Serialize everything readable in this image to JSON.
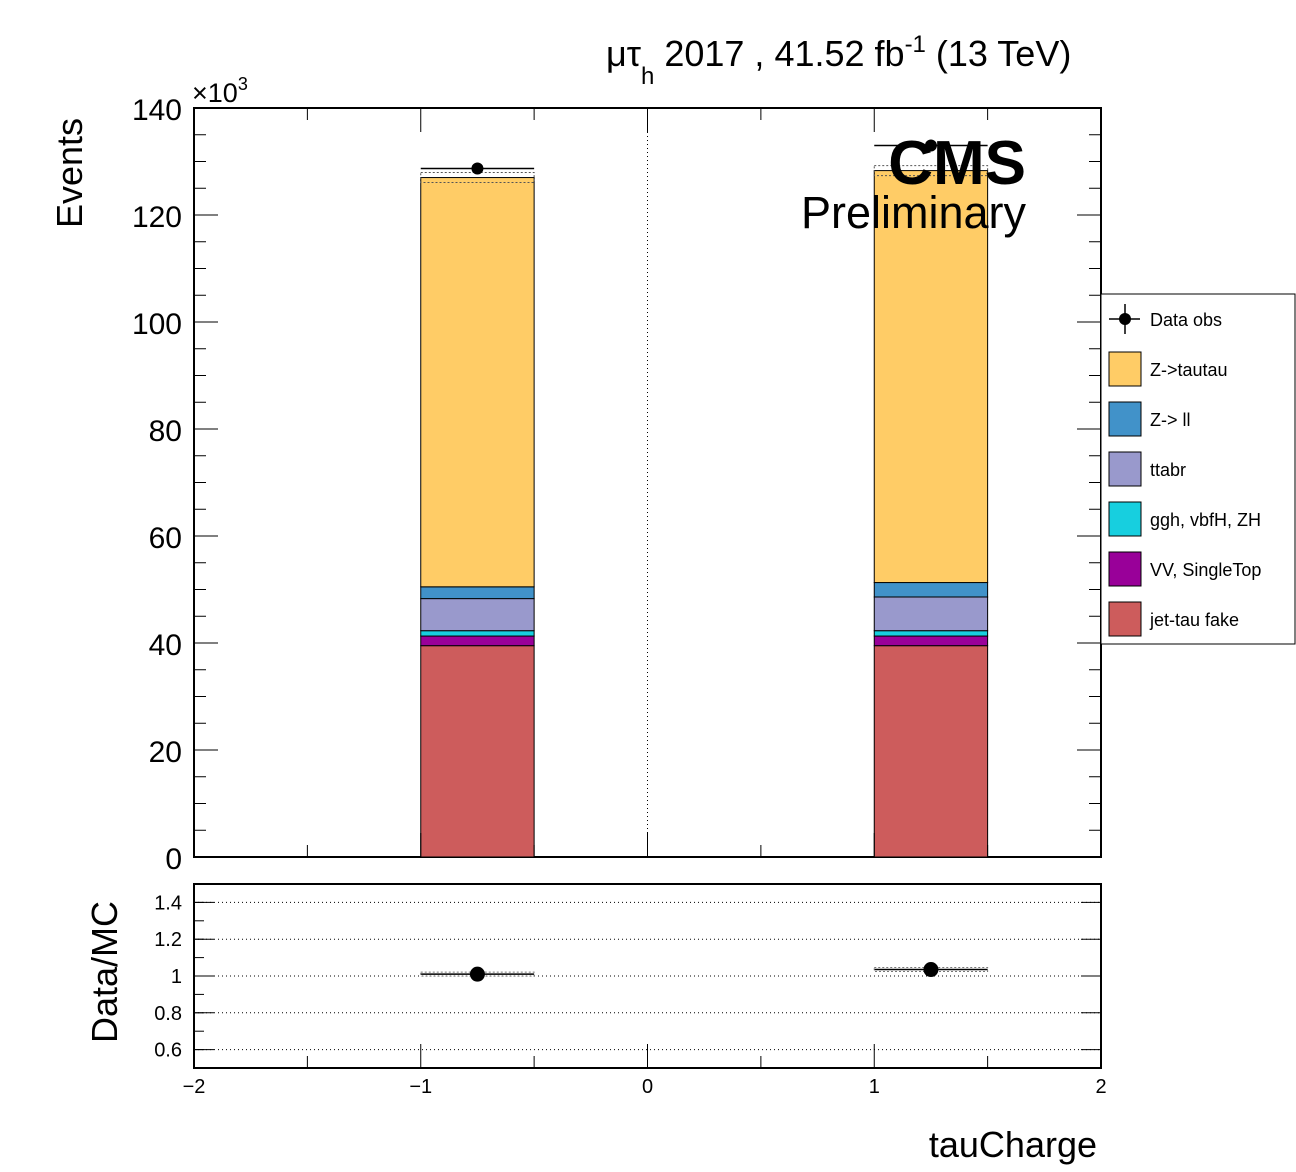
{
  "header": {
    "channel_mu": "μ",
    "channel_tau": "τ",
    "channel_sub": "h",
    "year_lumi": " 2017 , 41.52 fb",
    "lumi_exp": "-1",
    "energy": " (13 TeV)"
  },
  "cms_label": "CMS",
  "prelim_label": "Preliminary",
  "chart_data": [
    {
      "type": "bar",
      "stacked": true,
      "xlabel": "tauCharge",
      "ylabel": "Events",
      "y_multiplier_label": "×10",
      "y_multiplier_exp": "3",
      "xlim": [
        -2,
        2
      ],
      "ylim": [
        0,
        140000
      ],
      "y_ticks": [
        0,
        20,
        40,
        60,
        80,
        100,
        120,
        140
      ],
      "bins": [
        [
          -1,
          -0.5
        ],
        [
          1,
          1.5
        ]
      ],
      "series": [
        {
          "name": "jet-tau fake",
          "color": "#cd5c5c",
          "values": [
            39500,
            39500
          ]
        },
        {
          "name": "VV, SingleTop",
          "color": "#990099",
          "values": [
            1800,
            1800
          ]
        },
        {
          "name": "ggh, vbfH, ZH",
          "color": "#17cfdf",
          "values": [
            1000,
            1000
          ]
        },
        {
          "name": "ttabr",
          "color": "#9999cc",
          "values": [
            6000,
            6300
          ]
        },
        {
          "name": "Z-> ll",
          "color": "#4192c9",
          "values": [
            2200,
            2700
          ]
        },
        {
          "name": "Z->tautau",
          "color": "#ffcc66",
          "values": [
            76500,
            77000
          ]
        }
      ],
      "data_obs": {
        "name": "Data obs",
        "x": [
          -0.75,
          1.25
        ],
        "y": [
          128700,
          133000
        ]
      },
      "legend_position": "right",
      "legend_order": [
        "Data obs",
        "Z->tautau",
        "Z-> ll",
        "ttabr",
        "ggh, vbfH, ZH",
        "VV, SingleTop",
        "jet-tau fake"
      ]
    },
    {
      "type": "scatter",
      "xlabel": "tauCharge",
      "ylabel": "Data/MC",
      "xlim": [
        -2,
        2
      ],
      "ylim": [
        0.5,
        1.5
      ],
      "x_ticks": [
        "−2",
        "−1",
        "0",
        "1",
        "2"
      ],
      "y_ticks": [
        "0.6",
        "0.8",
        "1",
        "1.2",
        "1.4"
      ],
      "grid": true,
      "x": [
        -0.75,
        1.25
      ],
      "y": [
        1.01,
        1.035
      ]
    }
  ]
}
